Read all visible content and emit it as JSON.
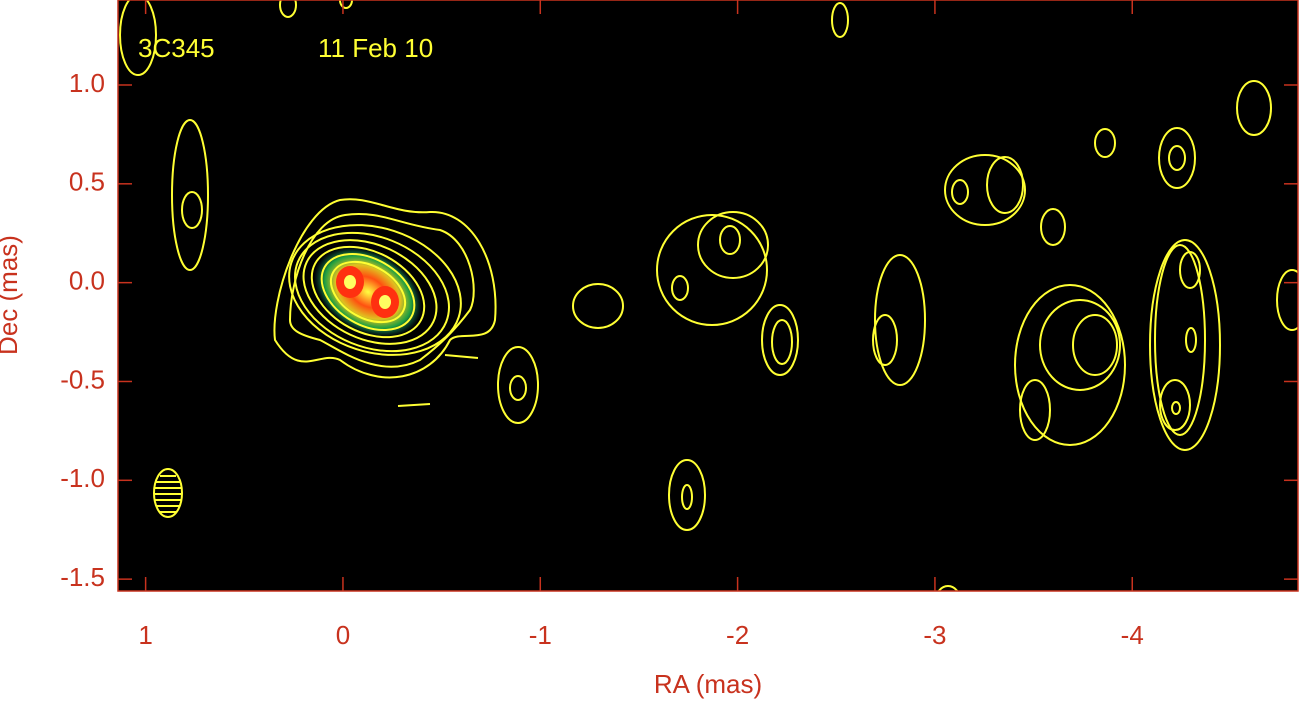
{
  "chart_data": {
    "type": "contour-map",
    "annotations": [
      "3C345",
      "11 Feb 10"
    ],
    "x_label": "RA (mas)",
    "y_label": "Dec (mas)",
    "xlim": [
      1.14,
      -4.84
    ],
    "ylim": [
      -1.56,
      1.43
    ],
    "xticks": [
      1,
      0,
      -1,
      -2,
      -3,
      -4
    ],
    "yticks": [
      {
        "value": 1.0,
        "label": "1.0"
      },
      {
        "value": 0.5,
        "label": "0.5"
      },
      {
        "value": 0.0,
        "label": "0.0"
      },
      {
        "value": -0.5,
        "label": "-0.5"
      },
      {
        "value": -1.0,
        "label": "-1.0"
      },
      {
        "value": -1.5,
        "label": "-1.5"
      }
    ],
    "axis_color": "#c8321e",
    "contour_color": "#ffff33"
  }
}
